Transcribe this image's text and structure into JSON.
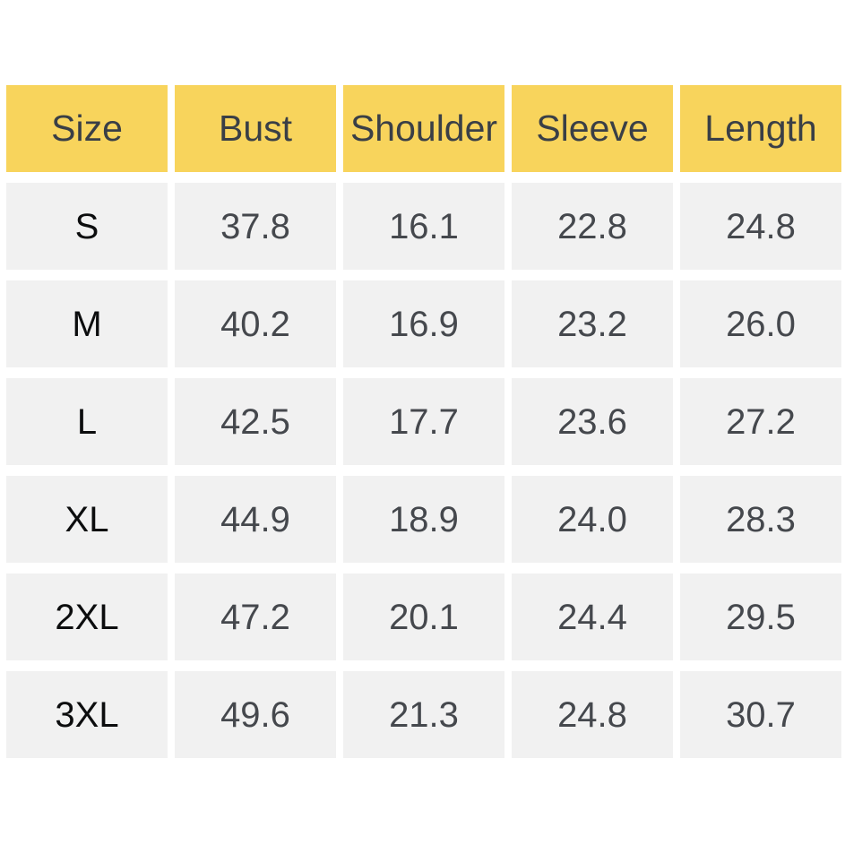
{
  "chart_data": {
    "type": "table",
    "columns": [
      "Size",
      "Bust",
      "Shoulder",
      "Sleeve",
      "Length"
    ],
    "rows": [
      [
        "S",
        "37.8",
        "16.1",
        "22.8",
        "24.8"
      ],
      [
        "M",
        "40.2",
        "16.9",
        "23.2",
        "26.0"
      ],
      [
        "L",
        "42.5",
        "17.7",
        "23.6",
        "27.2"
      ],
      [
        "XL",
        "44.9",
        "18.9",
        "24.0",
        "28.3"
      ],
      [
        "2XL",
        "47.2",
        "20.1",
        "24.4",
        "29.5"
      ],
      [
        "3XL",
        "49.6",
        "21.3",
        "24.8",
        "30.7"
      ]
    ]
  },
  "colors": {
    "header_bg": "#F8D45C",
    "header_text": "#3A3F46",
    "cell_bg": "#F1F1F1",
    "value_text": "#45484D",
    "size_text": "#0C0D0E"
  }
}
